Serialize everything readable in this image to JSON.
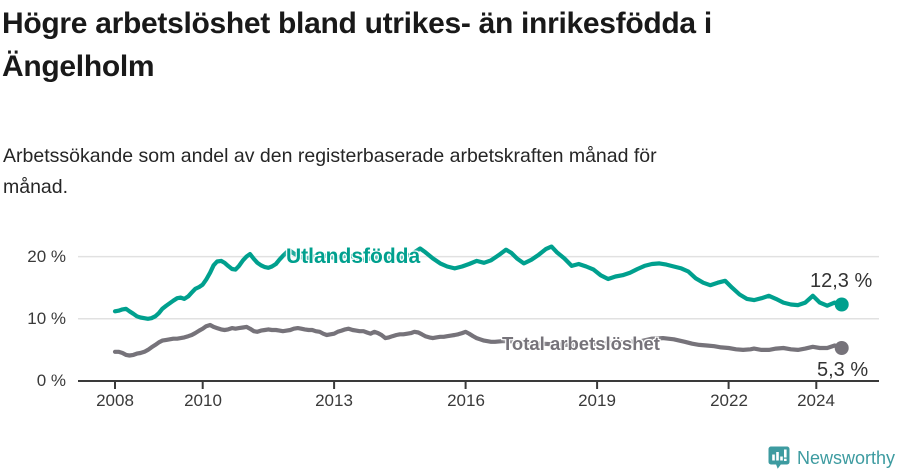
{
  "header": {
    "title_line1": "Högre arbetslöshet bland utrikes- än inrikesfödda i",
    "title_line2": "Ängelholm",
    "subtitle_line1": "Arbetssökande som andel av den registerbaserade arbetskraften månad för",
    "subtitle_line2": "månad."
  },
  "colors": {
    "foreign_born_line": "#00a08e",
    "total_line": "#76737a",
    "grid": "#e1e1e1",
    "axis": "#3a3a3a",
    "value_label": "#333333",
    "brand_teal": "#3d9ba0"
  },
  "chart_data": {
    "type": "line",
    "unit": "%",
    "grid": "horizontal",
    "y_axis": {
      "range": [
        0,
        22.5
      ],
      "ticks": [
        {
          "value": 0,
          "label": "0 %"
        },
        {
          "value": 10,
          "label": "10 %"
        },
        {
          "value": 20,
          "label": "20 %"
        }
      ]
    },
    "x_axis": {
      "range": [
        2008,
        2025
      ],
      "ticks": [
        {
          "value": 2008,
          "label": "2008"
        },
        {
          "value": 2010,
          "label": "2010"
        },
        {
          "value": 2013,
          "label": "2013"
        },
        {
          "value": 2016,
          "label": "2016"
        },
        {
          "value": 2019,
          "label": "2019"
        },
        {
          "value": 2022,
          "label": "2022"
        },
        {
          "value": 2024,
          "label": "2024"
        }
      ]
    },
    "series": [
      {
        "name": "Utlandsfödda",
        "color": "#00a08e",
        "end_value": 12.3,
        "end_value_label": "12,3 %",
        "points": [
          [
            2008.0,
            11.2
          ],
          [
            2008.08,
            11.3
          ],
          [
            2008.17,
            11.5
          ],
          [
            2008.25,
            11.6
          ],
          [
            2008.33,
            11.2
          ],
          [
            2008.42,
            10.8
          ],
          [
            2008.5,
            10.4
          ],
          [
            2008.58,
            10.2
          ],
          [
            2008.67,
            10.1
          ],
          [
            2008.75,
            10.0
          ],
          [
            2008.83,
            10.1
          ],
          [
            2008.92,
            10.4
          ],
          [
            2009.0,
            10.9
          ],
          [
            2009.08,
            11.6
          ],
          [
            2009.17,
            12.1
          ],
          [
            2009.25,
            12.5
          ],
          [
            2009.33,
            12.9
          ],
          [
            2009.42,
            13.3
          ],
          [
            2009.5,
            13.4
          ],
          [
            2009.58,
            13.2
          ],
          [
            2009.67,
            13.6
          ],
          [
            2009.75,
            14.2
          ],
          [
            2009.83,
            14.8
          ],
          [
            2009.92,
            15.1
          ],
          [
            2010.0,
            15.5
          ],
          [
            2010.08,
            16.3
          ],
          [
            2010.17,
            17.4
          ],
          [
            2010.25,
            18.6
          ],
          [
            2010.33,
            19.2
          ],
          [
            2010.42,
            19.3
          ],
          [
            2010.5,
            19.0
          ],
          [
            2010.58,
            18.5
          ],
          [
            2010.67,
            18.0
          ],
          [
            2010.75,
            17.9
          ],
          [
            2010.83,
            18.5
          ],
          [
            2010.92,
            19.4
          ],
          [
            2011.0,
            20.0
          ],
          [
            2011.08,
            20.4
          ],
          [
            2011.17,
            19.6
          ],
          [
            2011.25,
            19.0
          ],
          [
            2011.33,
            18.6
          ],
          [
            2011.42,
            18.3
          ],
          [
            2011.5,
            18.2
          ],
          [
            2011.58,
            18.4
          ],
          [
            2011.67,
            18.8
          ],
          [
            2011.75,
            19.5
          ],
          [
            2011.83,
            20.1
          ],
          [
            2011.92,
            20.7
          ],
          [
            2012.0,
            20.9
          ],
          [
            2012.08,
            20.5
          ],
          [
            2012.17,
            20.1
          ],
          [
            2012.33,
            19.7
          ],
          [
            2012.5,
            19.9
          ],
          [
            2012.67,
            20.3
          ],
          [
            2012.83,
            20.1
          ],
          [
            2013.0,
            19.8
          ],
          [
            2013.17,
            20.0
          ],
          [
            2013.33,
            20.2
          ],
          [
            2013.5,
            19.8
          ],
          [
            2013.67,
            19.5
          ],
          [
            2013.83,
            19.7
          ],
          [
            2014.0,
            19.9
          ],
          [
            2014.17,
            19.6
          ],
          [
            2014.33,
            19.9
          ],
          [
            2014.5,
            19.7
          ],
          [
            2014.67,
            20.1
          ],
          [
            2014.83,
            20.7
          ],
          [
            2014.96,
            21.3
          ],
          [
            2015.08,
            20.7
          ],
          [
            2015.25,
            19.7
          ],
          [
            2015.42,
            18.9
          ],
          [
            2015.58,
            18.4
          ],
          [
            2015.75,
            18.1
          ],
          [
            2015.92,
            18.4
          ],
          [
            2016.08,
            18.8
          ],
          [
            2016.25,
            19.3
          ],
          [
            2016.42,
            19.0
          ],
          [
            2016.58,
            19.4
          ],
          [
            2016.75,
            20.2
          ],
          [
            2016.92,
            21.1
          ],
          [
            2017.04,
            20.6
          ],
          [
            2017.17,
            19.7
          ],
          [
            2017.33,
            18.9
          ],
          [
            2017.5,
            19.5
          ],
          [
            2017.67,
            20.3
          ],
          [
            2017.83,
            21.2
          ],
          [
            2017.96,
            21.6
          ],
          [
            2018.08,
            20.7
          ],
          [
            2018.25,
            19.7
          ],
          [
            2018.42,
            18.5
          ],
          [
            2018.58,
            18.8
          ],
          [
            2018.75,
            18.4
          ],
          [
            2018.92,
            17.9
          ],
          [
            2019.08,
            17.0
          ],
          [
            2019.25,
            16.4
          ],
          [
            2019.42,
            16.8
          ],
          [
            2019.58,
            17.0
          ],
          [
            2019.75,
            17.4
          ],
          [
            2019.92,
            18.0
          ],
          [
            2020.08,
            18.5
          ],
          [
            2020.25,
            18.8
          ],
          [
            2020.42,
            18.9
          ],
          [
            2020.58,
            18.7
          ],
          [
            2020.75,
            18.4
          ],
          [
            2020.92,
            18.1
          ],
          [
            2021.08,
            17.6
          ],
          [
            2021.25,
            16.5
          ],
          [
            2021.42,
            15.8
          ],
          [
            2021.58,
            15.4
          ],
          [
            2021.75,
            15.8
          ],
          [
            2021.92,
            16.1
          ],
          [
            2022.08,
            15.0
          ],
          [
            2022.25,
            13.9
          ],
          [
            2022.42,
            13.2
          ],
          [
            2022.58,
            13.0
          ],
          [
            2022.75,
            13.3
          ],
          [
            2022.92,
            13.7
          ],
          [
            2023.08,
            13.2
          ],
          [
            2023.25,
            12.6
          ],
          [
            2023.42,
            12.3
          ],
          [
            2023.58,
            12.2
          ],
          [
            2023.75,
            12.6
          ],
          [
            2023.92,
            13.7
          ],
          [
            2024.08,
            12.6
          ],
          [
            2024.25,
            12.1
          ],
          [
            2024.42,
            12.6
          ],
          [
            2024.58,
            12.3
          ]
        ]
      },
      {
        "name": "Total arbetslöshet",
        "color": "#76737a",
        "end_value": 5.3,
        "end_value_label": "5,3 %",
        "points": [
          [
            2008.0,
            4.7
          ],
          [
            2008.08,
            4.7
          ],
          [
            2008.17,
            4.5
          ],
          [
            2008.25,
            4.2
          ],
          [
            2008.33,
            4.1
          ],
          [
            2008.42,
            4.2
          ],
          [
            2008.5,
            4.4
          ],
          [
            2008.58,
            4.5
          ],
          [
            2008.67,
            4.7
          ],
          [
            2008.75,
            5.0
          ],
          [
            2008.83,
            5.4
          ],
          [
            2008.92,
            5.8
          ],
          [
            2009.0,
            6.2
          ],
          [
            2009.08,
            6.5
          ],
          [
            2009.17,
            6.6
          ],
          [
            2009.25,
            6.7
          ],
          [
            2009.33,
            6.8
          ],
          [
            2009.42,
            6.8
          ],
          [
            2009.5,
            6.9
          ],
          [
            2009.58,
            7.0
          ],
          [
            2009.67,
            7.2
          ],
          [
            2009.75,
            7.4
          ],
          [
            2009.83,
            7.7
          ],
          [
            2009.92,
            8.1
          ],
          [
            2010.0,
            8.4
          ],
          [
            2010.08,
            8.8
          ],
          [
            2010.17,
            9.0
          ],
          [
            2010.25,
            8.7
          ],
          [
            2010.33,
            8.5
          ],
          [
            2010.42,
            8.3
          ],
          [
            2010.5,
            8.2
          ],
          [
            2010.58,
            8.3
          ],
          [
            2010.67,
            8.5
          ],
          [
            2010.75,
            8.4
          ],
          [
            2010.83,
            8.5
          ],
          [
            2010.92,
            8.6
          ],
          [
            2011.0,
            8.7
          ],
          [
            2011.08,
            8.4
          ],
          [
            2011.17,
            8.0
          ],
          [
            2011.25,
            7.9
          ],
          [
            2011.33,
            8.1
          ],
          [
            2011.42,
            8.2
          ],
          [
            2011.5,
            8.3
          ],
          [
            2011.58,
            8.2
          ],
          [
            2011.67,
            8.2
          ],
          [
            2011.75,
            8.1
          ],
          [
            2011.83,
            8.0
          ],
          [
            2011.92,
            8.1
          ],
          [
            2012.0,
            8.2
          ],
          [
            2012.08,
            8.4
          ],
          [
            2012.17,
            8.5
          ],
          [
            2012.25,
            8.4
          ],
          [
            2012.33,
            8.3
          ],
          [
            2012.42,
            8.2
          ],
          [
            2012.5,
            8.2
          ],
          [
            2012.58,
            8.0
          ],
          [
            2012.67,
            7.9
          ],
          [
            2012.75,
            7.6
          ],
          [
            2012.83,
            7.4
          ],
          [
            2012.92,
            7.5
          ],
          [
            2013.0,
            7.6
          ],
          [
            2013.08,
            7.9
          ],
          [
            2013.17,
            8.1
          ],
          [
            2013.25,
            8.3
          ],
          [
            2013.33,
            8.4
          ],
          [
            2013.42,
            8.2
          ],
          [
            2013.5,
            8.1
          ],
          [
            2013.58,
            8.0
          ],
          [
            2013.67,
            8.0
          ],
          [
            2013.75,
            7.8
          ],
          [
            2013.83,
            7.6
          ],
          [
            2013.92,
            7.9
          ],
          [
            2014.0,
            7.7
          ],
          [
            2014.08,
            7.4
          ],
          [
            2014.17,
            6.9
          ],
          [
            2014.25,
            7.0
          ],
          [
            2014.33,
            7.2
          ],
          [
            2014.42,
            7.4
          ],
          [
            2014.5,
            7.5
          ],
          [
            2014.58,
            7.5
          ],
          [
            2014.67,
            7.6
          ],
          [
            2014.75,
            7.7
          ],
          [
            2014.83,
            7.9
          ],
          [
            2014.92,
            7.8
          ],
          [
            2015.0,
            7.5
          ],
          [
            2015.08,
            7.2
          ],
          [
            2015.17,
            7.0
          ],
          [
            2015.25,
            6.9
          ],
          [
            2015.33,
            7.0
          ],
          [
            2015.42,
            7.1
          ],
          [
            2015.5,
            7.1
          ],
          [
            2015.58,
            7.2
          ],
          [
            2015.67,
            7.3
          ],
          [
            2015.75,
            7.4
          ],
          [
            2015.83,
            7.5
          ],
          [
            2015.92,
            7.7
          ],
          [
            2016.0,
            7.9
          ],
          [
            2016.08,
            7.6
          ],
          [
            2016.17,
            7.2
          ],
          [
            2016.25,
            6.9
          ],
          [
            2016.33,
            6.7
          ],
          [
            2016.42,
            6.5
          ],
          [
            2016.5,
            6.4
          ],
          [
            2016.58,
            6.3
          ],
          [
            2016.67,
            6.3
          ],
          [
            2016.83,
            6.4
          ],
          [
            2017.0,
            6.4
          ],
          [
            2017.25,
            6.3
          ],
          [
            2017.5,
            6.1
          ],
          [
            2017.75,
            6.0
          ],
          [
            2018.0,
            5.9
          ],
          [
            2018.25,
            5.8
          ],
          [
            2018.5,
            5.8
          ],
          [
            2018.75,
            5.9
          ],
          [
            2019.0,
            6.0
          ],
          [
            2019.25,
            6.1
          ],
          [
            2019.5,
            6.2
          ],
          [
            2019.75,
            6.3
          ],
          [
            2020.0,
            6.4
          ],
          [
            2020.25,
            6.8
          ],
          [
            2020.5,
            6.9
          ],
          [
            2020.75,
            6.7
          ],
          [
            2021.0,
            6.3
          ],
          [
            2021.17,
            6.0
          ],
          [
            2021.33,
            5.8
          ],
          [
            2021.5,
            5.7
          ],
          [
            2021.67,
            5.6
          ],
          [
            2021.83,
            5.4
          ],
          [
            2022.0,
            5.3
          ],
          [
            2022.17,
            5.1
          ],
          [
            2022.33,
            5.0
          ],
          [
            2022.5,
            5.1
          ],
          [
            2022.58,
            5.2
          ],
          [
            2022.75,
            5.0
          ],
          [
            2022.92,
            5.0
          ],
          [
            2023.08,
            5.2
          ],
          [
            2023.25,
            5.3
          ],
          [
            2023.42,
            5.1
          ],
          [
            2023.58,
            5.0
          ],
          [
            2023.75,
            5.2
          ],
          [
            2023.92,
            5.5
          ],
          [
            2024.08,
            5.3
          ],
          [
            2024.25,
            5.3
          ],
          [
            2024.42,
            5.7
          ],
          [
            2024.58,
            5.3
          ]
        ]
      }
    ]
  },
  "footer": {
    "brand": "Newsworthy",
    "logo_icon": "newsworthy-speech-bubble-bar-chart-icon"
  }
}
